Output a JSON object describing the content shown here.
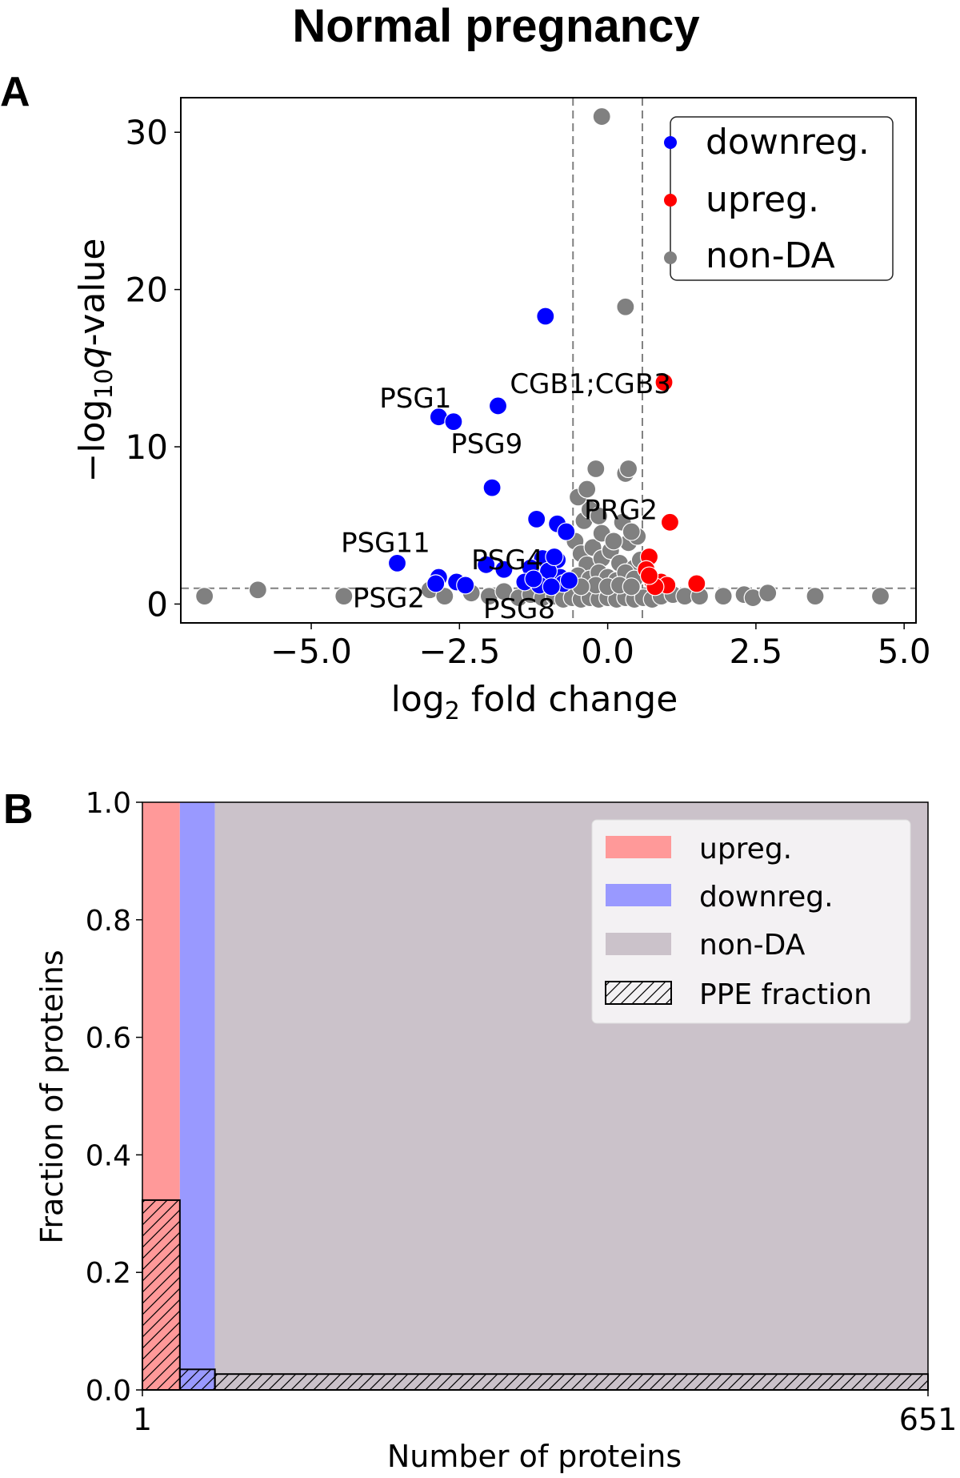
{
  "figure": {
    "title": "Normal pregnancy",
    "panel_a_letter": "A",
    "panel_b_letter": "B"
  },
  "colors": {
    "downreg": "#0000ff",
    "upreg": "#ff0000",
    "nonDA": "#808080",
    "bar_upreg": "#ff9999",
    "bar_downreg": "#9999ff",
    "bar_nonDA": "#cbc2ca",
    "legend_b_bg": "#f3f1f3"
  },
  "chart_data": [
    {
      "type": "scatter",
      "title": "",
      "xlabel": "log2 fold change",
      "xlabel_main": "log",
      "xlabel_sub": "2",
      "xlabel_rest": " fold change",
      "ylabel": "−log10 q-value",
      "ylabel_pre": "−log",
      "ylabel_sub": "10",
      "ylabel_q": "q",
      "ylabel_rest": "-value",
      "xlim": [
        -7.2,
        5.2
      ],
      "ylim": [
        -1.2,
        32.2
      ],
      "xticks": [
        -5.0,
        -2.5,
        0.0,
        2.5,
        5.0
      ],
      "xtick_labels": [
        "−5.0",
        "−2.5",
        "0.0",
        "2.5",
        "5.0"
      ],
      "yticks": [
        0,
        10,
        20,
        30
      ],
      "ytick_labels": [
        "0",
        "10",
        "20",
        "30"
      ],
      "thresholds": {
        "fold_change": [
          -0.585,
          0.585
        ],
        "q": 1.0
      },
      "legend": {
        "position": "top-right",
        "entries": [
          {
            "label": "downreg.",
            "series": "downreg"
          },
          {
            "label": "upreg.",
            "series": "upreg"
          },
          {
            "label": "non-DA",
            "series": "nonDA"
          }
        ]
      },
      "series": [
        {
          "name": "non-DA",
          "key": "nonDA",
          "points": [
            [
              -6.8,
              0.5
            ],
            [
              -5.9,
              0.9
            ],
            [
              -4.45,
              0.5
            ],
            [
              -3.0,
              0.9
            ],
            [
              -2.75,
              0.5
            ],
            [
              -2.3,
              0.7
            ],
            [
              -2.0,
              0.5
            ],
            [
              -1.75,
              0.8
            ],
            [
              -1.5,
              0.4
            ],
            [
              -1.3,
              0.6
            ],
            [
              -1.1,
              0.4
            ],
            [
              -0.9,
              0.5
            ],
            [
              -0.75,
              0.3
            ],
            [
              -0.6,
              0.4
            ],
            [
              -0.45,
              0.3
            ],
            [
              -0.3,
              0.4
            ],
            [
              -0.15,
              0.3
            ],
            [
              0.0,
              0.4
            ],
            [
              0.15,
              0.3
            ],
            [
              0.3,
              0.4
            ],
            [
              0.45,
              0.3
            ],
            [
              0.6,
              0.4
            ],
            [
              0.75,
              0.3
            ],
            [
              0.9,
              0.5
            ],
            [
              1.1,
              0.6
            ],
            [
              1.3,
              0.5
            ],
            [
              1.55,
              0.5
            ],
            [
              1.95,
              0.5
            ],
            [
              2.3,
              0.6
            ],
            [
              2.45,
              0.4
            ],
            [
              2.7,
              0.7
            ],
            [
              3.5,
              0.5
            ],
            [
              4.6,
              0.5
            ],
            [
              -0.55,
              4.0
            ],
            [
              -0.45,
              3.2
            ],
            [
              -0.35,
              2.5
            ],
            [
              -0.25,
              3.6
            ],
            [
              -0.1,
              2.9
            ],
            [
              0.05,
              3.4
            ],
            [
              0.2,
              2.6
            ],
            [
              0.35,
              3.9
            ],
            [
              0.45,
              2.3
            ],
            [
              0.5,
              4.3
            ],
            [
              -0.5,
              1.8
            ],
            [
              -0.3,
              1.6
            ],
            [
              -0.15,
              2.0
            ],
            [
              0.0,
              1.7
            ],
            [
              0.15,
              1.5
            ],
            [
              0.3,
              2.0
            ],
            [
              0.45,
              1.6
            ],
            [
              0.55,
              2.8
            ],
            [
              -0.4,
              5.3
            ],
            [
              -0.3,
              6.0
            ],
            [
              -0.5,
              6.8
            ],
            [
              -0.35,
              7.3
            ],
            [
              -0.2,
              8.6
            ],
            [
              0.3,
              8.3
            ],
            [
              0.35,
              8.6
            ],
            [
              -0.15,
              5.6
            ],
            [
              0.25,
              5.2
            ],
            [
              0.4,
              4.6
            ],
            [
              -0.1,
              4.5
            ],
            [
              0.1,
              4.0
            ],
            [
              -0.2,
              1.2
            ],
            [
              0.0,
              1.1
            ],
            [
              0.2,
              1.2
            ],
            [
              0.4,
              1.1
            ],
            [
              -0.45,
              1.1
            ],
            [
              -0.1,
              31.0
            ],
            [
              0.3,
              18.9
            ]
          ]
        },
        {
          "name": "downreg.",
          "key": "downreg",
          "points": [
            [
              -2.85,
              11.9
            ],
            [
              -2.6,
              11.6
            ],
            [
              -1.85,
              12.6
            ],
            [
              -1.05,
              18.3
            ],
            [
              -1.95,
              7.4
            ],
            [
              -1.2,
              5.4
            ],
            [
              -0.85,
              5.1
            ],
            [
              -0.7,
              4.6
            ],
            [
              -3.55,
              2.6
            ],
            [
              -2.85,
              1.7
            ],
            [
              -2.55,
              1.4
            ],
            [
              -2.05,
              2.5
            ],
            [
              -1.75,
              2.2
            ],
            [
              -1.1,
              2.9
            ],
            [
              -0.85,
              2.8
            ],
            [
              -1.2,
              1.8
            ],
            [
              -1.0,
              1.5
            ],
            [
              -0.8,
              1.7
            ],
            [
              -1.3,
              2.3
            ],
            [
              -1.0,
              2.1
            ],
            [
              -0.75,
              1.3
            ],
            [
              -1.15,
              1.2
            ],
            [
              -0.95,
              1.1
            ],
            [
              -2.4,
              1.2
            ],
            [
              -2.9,
              1.3
            ],
            [
              -1.4,
              1.4
            ],
            [
              -0.65,
              1.5
            ],
            [
              -0.9,
              3.0
            ],
            [
              -1.25,
              1.6
            ]
          ]
        },
        {
          "name": "upreg.",
          "key": "upreg",
          "points": [
            [
              0.95,
              14.1
            ],
            [
              1.05,
              5.2
            ],
            [
              1.5,
              1.3
            ],
            [
              0.7,
              3.0
            ],
            [
              0.75,
              1.5
            ],
            [
              0.9,
              1.4
            ],
            [
              1.0,
              1.2
            ],
            [
              0.65,
              2.2
            ],
            [
              0.8,
              1.1
            ],
            [
              0.7,
              1.8
            ]
          ]
        }
      ],
      "annotations": [
        {
          "text": "PSG1",
          "x": -3.85,
          "y": 12.5
        },
        {
          "text": "PSG9",
          "x": -2.65,
          "y": 9.6
        },
        {
          "text": "CGB1;CGB3",
          "x": -1.65,
          "y": 13.4
        },
        {
          "text": "PRG2",
          "x": -0.4,
          "y": 5.4
        },
        {
          "text": "PSG11",
          "x": -4.5,
          "y": 3.3
        },
        {
          "text": "PSG4",
          "x": -2.3,
          "y": 2.2
        },
        {
          "text": "PSG2",
          "x": -4.3,
          "y": -0.2
        },
        {
          "text": "PSG8",
          "x": -2.1,
          "y": -0.9
        }
      ]
    },
    {
      "type": "bar",
      "title": "",
      "xlabel": "Number of proteins",
      "ylabel": "Fraction of proteins",
      "xlim": [
        1,
        651
      ],
      "ylim": [
        0,
        1.0
      ],
      "xticks": [
        1,
        651
      ],
      "xtick_labels": [
        "1",
        "651"
      ],
      "yticks": [
        0.0,
        0.2,
        0.4,
        0.6,
        0.8,
        1.0
      ],
      "ytick_labels": [
        "0.0",
        "0.2",
        "0.4",
        "0.6",
        "0.8",
        "1.0"
      ],
      "bars": [
        {
          "category": "upreg.",
          "key": "upreg",
          "start": 1,
          "end": 32,
          "count": 31,
          "fraction": 1.0,
          "ppe_fraction": 0.323
        },
        {
          "category": "downreg.",
          "key": "downreg",
          "start": 32,
          "end": 61,
          "count": 29,
          "fraction": 1.0,
          "ppe_fraction": 0.035
        },
        {
          "category": "non-DA",
          "key": "nonDA",
          "start": 61,
          "end": 651,
          "count": 590,
          "fraction": 1.0,
          "ppe_fraction": 0.027
        }
      ],
      "legend": {
        "position": "top-right",
        "entries": [
          {
            "label": "upreg.",
            "key": "upreg"
          },
          {
            "label": "downreg.",
            "key": "downreg"
          },
          {
            "label": "non-DA",
            "key": "nonDA"
          },
          {
            "label": "PPE fraction",
            "key": "hatch"
          }
        ]
      }
    }
  ]
}
